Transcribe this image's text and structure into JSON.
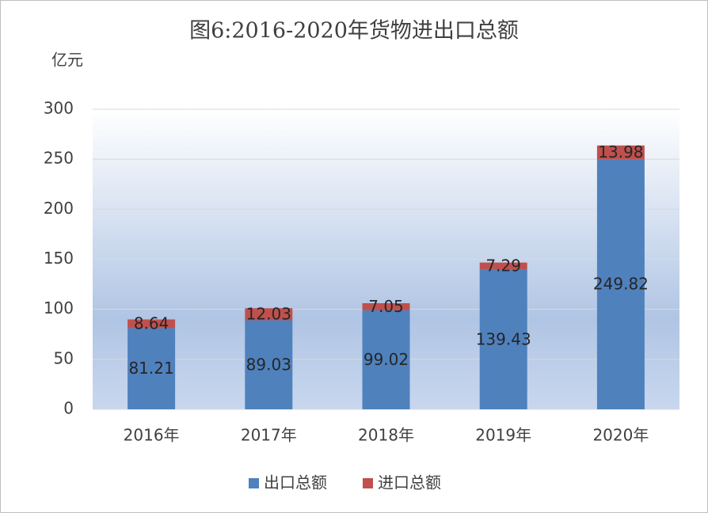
{
  "chart_data": {
    "type": "stacked_bar",
    "title": "图6:2016-2020年货物进出口总额",
    "y_axis_label": "亿元",
    "categories": [
      "2016年",
      "2017年",
      "2018年",
      "2019年",
      "2020年"
    ],
    "series": [
      {
        "name": "出口总额",
        "color": "#4f81bd",
        "values": [
          81.21,
          89.03,
          99.02,
          139.43,
          249.82
        ]
      },
      {
        "name": "进口总额",
        "color": "#c0504d",
        "values": [
          8.64,
          12.03,
          7.05,
          7.29,
          13.98
        ]
      }
    ],
    "ylim": [
      0,
      300
    ],
    "yticks": [
      0,
      50,
      100,
      150,
      200,
      250,
      300
    ],
    "grid": true,
    "legend": "bottom"
  }
}
